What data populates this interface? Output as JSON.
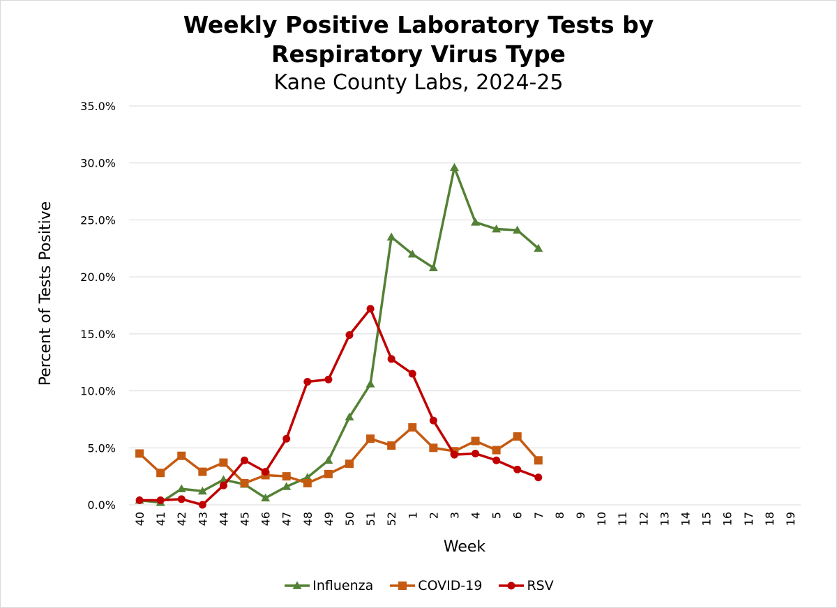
{
  "chart_data": {
    "type": "line",
    "title": "Weekly Positive Laboratory Tests by",
    "title_line2": "Respiratory Virus Type",
    "subtitle": "Kane County Labs, 2024-25",
    "xlabel": "Week",
    "ylabel": "Percent of Tests Positive",
    "ylim": [
      0,
      35
    ],
    "yticks": [
      "0.0%",
      "5.0%",
      "10.0%",
      "15.0%",
      "20.0%",
      "25.0%",
      "30.0%",
      "35.0%"
    ],
    "ytick_values": [
      0,
      5,
      10,
      15,
      20,
      25,
      30,
      35
    ],
    "grid": true,
    "legend_position": "bottom",
    "categories": [
      "40",
      "41",
      "42",
      "43",
      "44",
      "45",
      "46",
      "47",
      "48",
      "49",
      "50",
      "51",
      "52",
      "1",
      "2",
      "3",
      "4",
      "5",
      "6",
      "7",
      "8",
      "9",
      "10",
      "11",
      "12",
      "13",
      "14",
      "15",
      "16",
      "17",
      "18",
      "19"
    ],
    "series": [
      {
        "name": "Influenza",
        "color": "#538135",
        "marker": "triangle",
        "values": [
          0.4,
          0.2,
          1.4,
          1.2,
          2.2,
          1.8,
          0.6,
          1.6,
          2.4,
          3.9,
          7.7,
          10.6,
          23.5,
          22.0,
          20.8,
          29.6,
          24.8,
          24.2,
          24.1,
          22.5
        ]
      },
      {
        "name": "COVID-19",
        "color": "#C55A11",
        "marker": "square",
        "values": [
          4.5,
          2.8,
          4.3,
          2.9,
          3.7,
          1.9,
          2.6,
          2.5,
          1.9,
          2.7,
          3.6,
          5.8,
          5.2,
          6.8,
          5.0,
          4.7,
          5.6,
          4.8,
          6.0,
          3.9
        ]
      },
      {
        "name": "RSV",
        "color": "#C00000",
        "marker": "circle",
        "values": [
          0.4,
          0.4,
          0.5,
          0.0,
          1.7,
          3.9,
          2.9,
          5.8,
          10.8,
          11.0,
          14.9,
          17.2,
          12.8,
          11.5,
          7.4,
          4.4,
          4.5,
          3.9,
          3.1,
          2.4
        ]
      }
    ]
  }
}
